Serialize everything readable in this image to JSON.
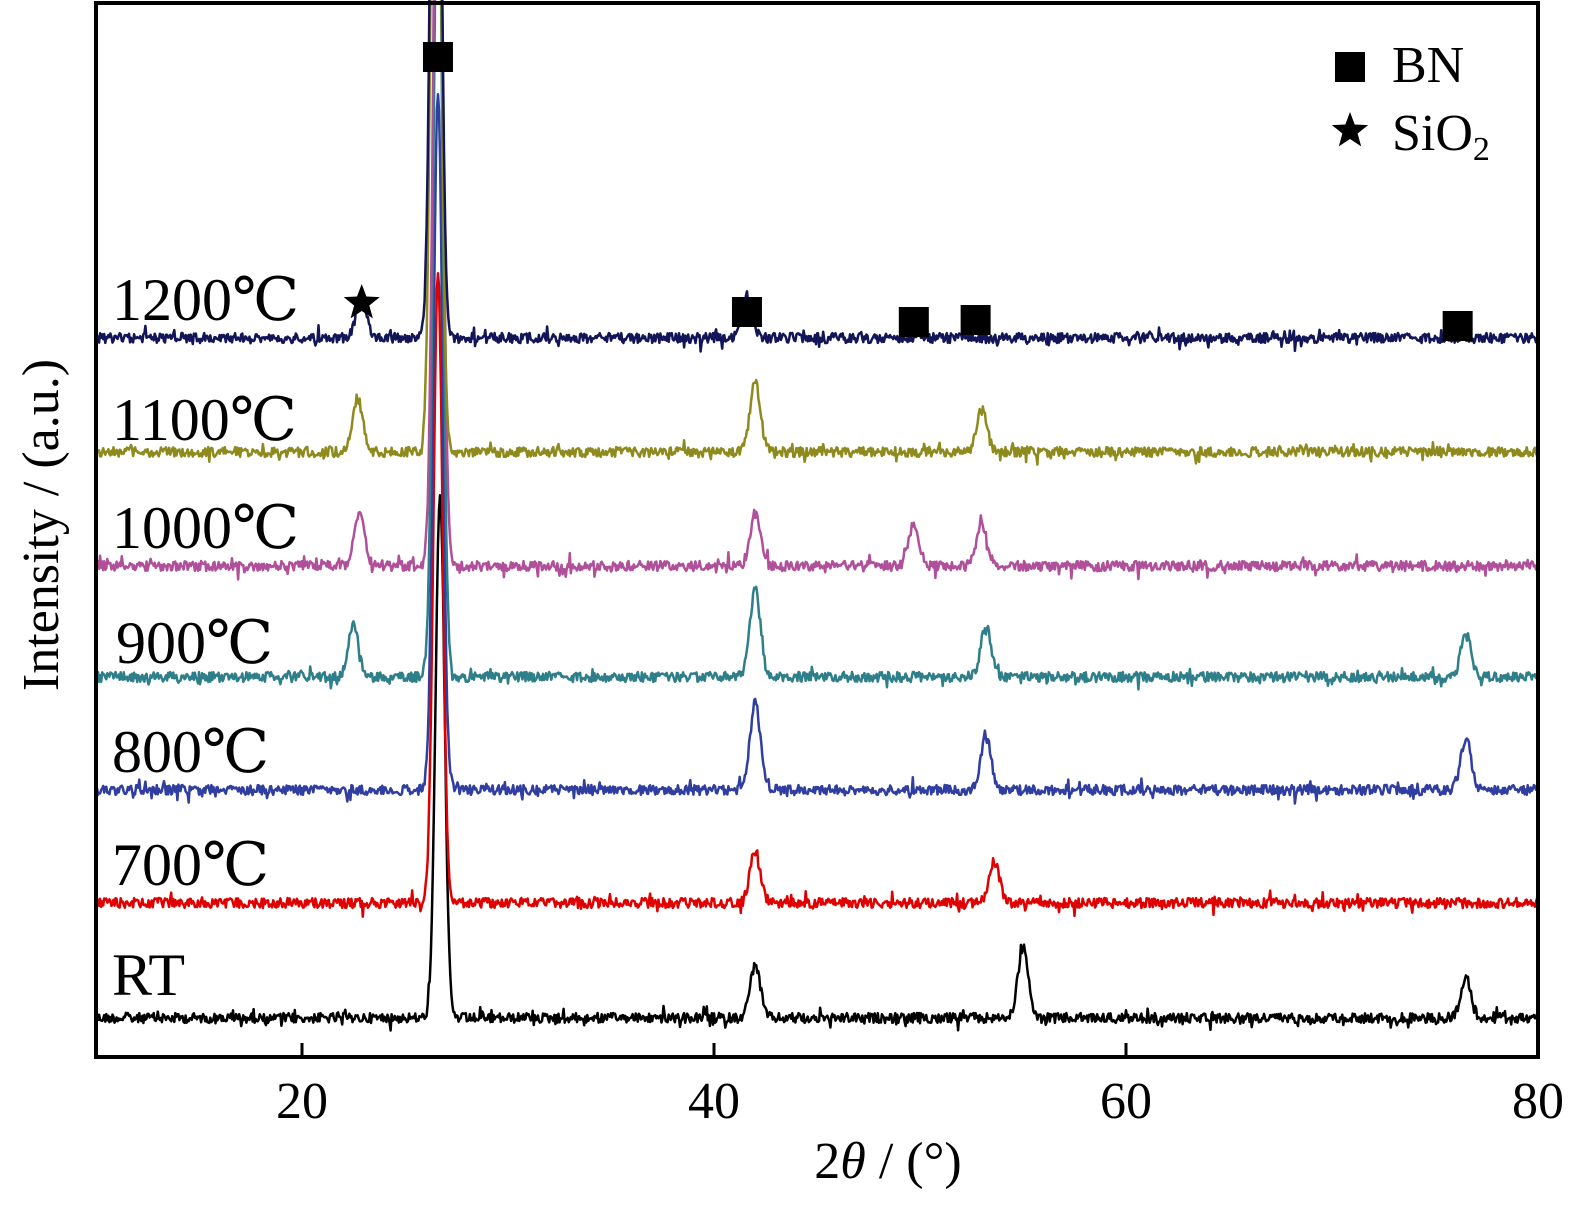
{
  "chart_data": {
    "type": "line",
    "xlabel_prefix": "2",
    "xlabel_symbol": "θ",
    "xlabel_suffix": " / (°)",
    "ylabel": "Intensity / (a.u.)",
    "xlim": [
      10,
      80
    ],
    "x_ticks": [
      20,
      40,
      60,
      80
    ],
    "x_tick_labels": [
      "20",
      "40",
      "60",
      "80"
    ],
    "grid": false,
    "legend_position": "top-right",
    "legend": [
      {
        "marker": "square",
        "label": "BN",
        "label_sub": ""
      },
      {
        "marker": "star",
        "label": "SiO",
        "label_sub": "2"
      }
    ],
    "peak_markers": {
      "bn_positions": [
        26.6,
        41.6,
        49.7,
        52.7,
        76.1
      ],
      "sio2_positions": [
        22.9
      ]
    },
    "series": [
      {
        "name": "RT",
        "color": "#000000",
        "peak_position": 26.7,
        "peak_height": 0.15,
        "minor_peaks": [
          [
            42.0,
            0.015
          ],
          [
            55.0,
            0.02
          ],
          [
            76.5,
            0.012
          ]
        ]
      },
      {
        "name": "700℃",
        "color": "#e00000",
        "peak_position": 26.6,
        "peak_height": 0.18,
        "minor_peaks": [
          [
            42.0,
            0.015
          ],
          [
            53.6,
            0.012
          ]
        ]
      },
      {
        "name": "800℃",
        "color": "#2f3ea0",
        "peak_position": 26.6,
        "peak_height": 0.2,
        "minor_peaks": [
          [
            42.0,
            0.025
          ],
          [
            53.2,
            0.015
          ],
          [
            76.5,
            0.015
          ]
        ]
      },
      {
        "name": "900℃",
        "color": "#2f7f8a",
        "peak_position": 26.6,
        "peak_height": 0.24,
        "minor_peaks": [
          [
            22.5,
            0.015
          ],
          [
            42.0,
            0.025
          ],
          [
            53.2,
            0.015
          ],
          [
            76.5,
            0.012
          ]
        ]
      },
      {
        "name": "1000℃",
        "color": "#b0509a",
        "peak_position": 26.6,
        "peak_height": 0.25,
        "minor_peaks": [
          [
            22.8,
            0.015
          ],
          [
            42.0,
            0.015
          ],
          [
            49.7,
            0.012
          ],
          [
            53.0,
            0.012
          ]
        ]
      },
      {
        "name": "1100℃",
        "color": "#8f8a1e",
        "peak_position": 26.5,
        "peak_height": 0.27,
        "minor_peaks": [
          [
            22.7,
            0.015
          ],
          [
            42.0,
            0.02
          ],
          [
            53.0,
            0.012
          ]
        ]
      },
      {
        "name": "1200℃",
        "color": "#131559",
        "peak_position": 26.5,
        "peak_height": 0.27,
        "minor_peaks": [
          [
            22.9,
            0.012
          ],
          [
            41.6,
            0.012
          ]
        ]
      }
    ]
  }
}
